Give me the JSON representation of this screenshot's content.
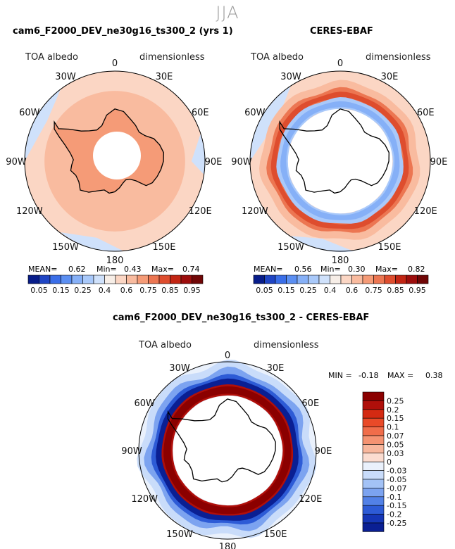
{
  "season": "JJA",
  "panels": [
    {
      "title": "cam6_F2000_DEV_ne30g16_ts300_2 (yrs 1)",
      "variable": "TOA albedo",
      "units": "dimensionless",
      "stats": {
        "mean_label": "MEAN=",
        "mean": "0.62",
        "min_label": "Min=",
        "min": "0.43",
        "max_label": "Max=",
        "max": "0.74"
      }
    },
    {
      "title": "CERES-EBAF",
      "variable": "TOA albedo",
      "units": "dimensionless",
      "stats": {
        "mean_label": "MEAN=",
        "mean": "0.56",
        "min_label": "Min=",
        "min": "0.30",
        "max_label": "Max=",
        "max": "0.82"
      }
    },
    {
      "title": "cam6_F2000_DEV_ne30g16_ts300_2 - CERES-EBAF",
      "variable": "TOA albedo",
      "units": "dimensionless",
      "stats": {
        "min_label": "MIN =",
        "min": "-0.18",
        "max_label": "MAX =",
        "max": "0.38"
      }
    }
  ],
  "longitude_labels": [
    "0",
    "30E",
    "60E",
    "90E",
    "120E",
    "150E",
    "180",
    "150W",
    "120W",
    "90W",
    "60W",
    "30W"
  ],
  "chart_data": [
    {
      "type": "heatmap",
      "title": "cam6_F2000_DEV_ne30g16_ts300_2 (yrs 1)",
      "projection": "south polar stereographic",
      "colorbar": {
        "levels": [
          "0.05",
          "0.15",
          "0.25",
          "0.4",
          "0.6",
          "0.75",
          "0.85",
          "0.95"
        ],
        "colors": [
          "#081d8a",
          "#1f45c4",
          "#3a6ee8",
          "#5b8ff2",
          "#86b0f7",
          "#a9c9fa",
          "#cfe1fb",
          "#f7eee7",
          "#fbd6c4",
          "#f9bb9f",
          "#f59b77",
          "#ec7652",
          "#de4d2e",
          "#c22513",
          "#9c0d0c",
          "#700606"
        ]
      },
      "stats": {
        "mean": 0.62,
        "min": 0.43,
        "max": 0.74
      }
    },
    {
      "type": "heatmap",
      "title": "CERES-EBAF",
      "projection": "south polar stereographic",
      "colorbar": {
        "levels": [
          "0.05",
          "0.15",
          "0.25",
          "0.4",
          "0.6",
          "0.75",
          "0.85",
          "0.95"
        ],
        "colors": [
          "#081d8a",
          "#1f45c4",
          "#3a6ee8",
          "#5b8ff2",
          "#86b0f7",
          "#a9c9fa",
          "#cfe1fb",
          "#f7eee7",
          "#fbd6c4",
          "#f9bb9f",
          "#f59b77",
          "#ec7652",
          "#de4d2e",
          "#c22513",
          "#9c0d0c",
          "#700606"
        ]
      },
      "stats": {
        "mean": 0.56,
        "min": 0.3,
        "max": 0.82
      }
    },
    {
      "type": "heatmap",
      "title": "cam6_F2000_DEV_ne30g16_ts300_2 - CERES-EBAF",
      "projection": "south polar stereographic",
      "colorbar": {
        "levels": [
          "0.25",
          "0.2",
          "0.15",
          "0.1",
          "0.07",
          "0.05",
          "0.03",
          "0",
          "-0.03",
          "-0.05",
          "-0.07",
          "-0.1",
          "-0.15",
          "-0.2",
          "-0.25"
        ],
        "colors": [
          "#8b0000",
          "#b00f0a",
          "#d42a12",
          "#e94a28",
          "#f06d4a",
          "#f59372",
          "#f8b79d",
          "#fbdcd0",
          "#eaf1fc",
          "#c9dcfa",
          "#a3c2f6",
          "#7ca3f0",
          "#5281e7",
          "#2d5bd6",
          "#1536b6",
          "#0a1f93"
        ]
      },
      "stats": {
        "min": -0.18,
        "max": 0.38
      }
    }
  ]
}
